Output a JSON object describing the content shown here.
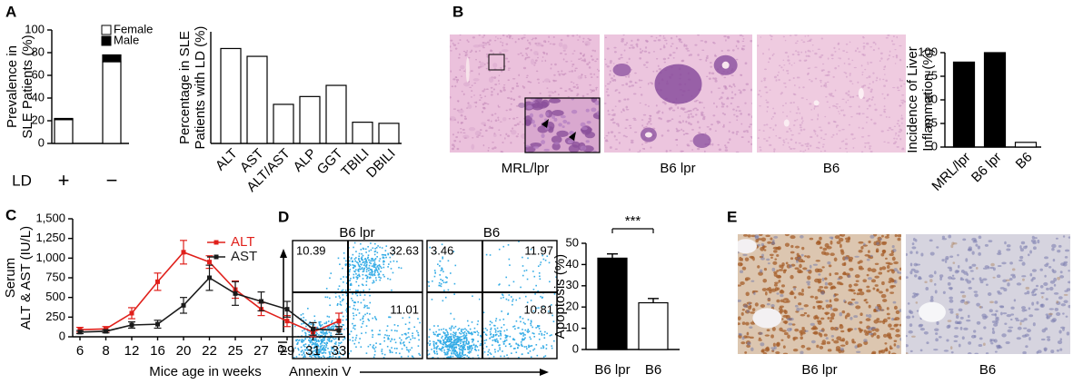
{
  "panel_letters": [
    "A",
    "B",
    "C",
    "D",
    "E"
  ],
  "panel_b_images": [
    "MRL/lpr",
    "B6 lpr",
    "B6"
  ],
  "panel_e_images": [
    "B6 lpr",
    "B6"
  ],
  "flow_cytometry": {
    "ylabel": "PI",
    "xlabel": "Annexin V",
    "plots": [
      {
        "title": "B6 lpr",
        "quadrants": [
          10.39,
          32.63,
          11.01
        ]
      },
      {
        "title": "B6",
        "quadrants": [
          3.46,
          11.97,
          10.81
        ]
      }
    ]
  },
  "chart_data": [
    {
      "type": "bar",
      "ylabel": [
        "Prevalence in",
        "SLE Patients (%)"
      ],
      "xlabel": "LD",
      "categories": [
        "+",
        "−"
      ],
      "series": [
        {
          "name": "Female",
          "color": "#ffffff",
          "values": [
            21,
            72
          ]
        },
        {
          "name": "Male",
          "color": "#000000",
          "values": [
            1,
            6
          ]
        }
      ],
      "ylim": [
        0,
        100
      ],
      "yticks": [
        0,
        20,
        40,
        60,
        80,
        100
      ]
    },
    {
      "type": "bar",
      "ylabel": [
        "Percentage in SLE",
        "Patients  with LD (%)"
      ],
      "categories": [
        "ALT",
        "AST",
        "ALT/AST",
        "ALP",
        "GGT",
        "TBILI",
        "DBILI"
      ],
      "values": [
        85,
        78,
        35,
        42,
        52,
        19,
        18
      ],
      "colors": [
        "#ffffff",
        "#ffffff",
        "#ffffff",
        "#ffffff",
        "#ffffff",
        "#ffffff",
        "#ffffff"
      ],
      "ylim": [
        0,
        100
      ]
    },
    {
      "type": "bar",
      "ylabel": [
        "Incidence of Liver",
        "Inflammation (%)"
      ],
      "categories": [
        "MRL/lpr",
        "B6 lpr",
        "B6"
      ],
      "values": [
        90,
        100,
        5
      ],
      "colors": [
        "#000000",
        "#000000",
        "#ffffff"
      ],
      "ylim": [
        0,
        100
      ],
      "yticks": [
        0,
        25,
        50,
        75,
        100
      ]
    },
    {
      "type": "line",
      "ylabel": [
        "Serum",
        "ALT & AST (IU/L)"
      ],
      "xlabel": "Mice age in weeks",
      "categories": [
        "6",
        "8",
        "12",
        "16",
        "20",
        "22",
        "25",
        "27",
        "29",
        "31",
        "33"
      ],
      "series": [
        {
          "name": "ALT",
          "color": "#e0201b",
          "values": [
            90,
            100,
            300,
            700,
            1075,
            950,
            600,
            350,
            200,
            60,
            200
          ],
          "errors": [
            30,
            30,
            70,
            110,
            150,
            80,
            110,
            80,
            70,
            60,
            100
          ]
        },
        {
          "name": "AST",
          "color": "#1a1a1a",
          "values": [
            60,
            70,
            150,
            160,
            400,
            750,
            550,
            450,
            350,
            100,
            80
          ],
          "errors": [
            20,
            20,
            40,
            50,
            100,
            160,
            150,
            120,
            100,
            80,
            50
          ]
        }
      ],
      "ylim": [
        0,
        1500
      ],
      "yticks": [
        0,
        250,
        500,
        750,
        {
          "value": 1000,
          "label": "1,000"
        },
        {
          "value": 1250,
          "label": "1,250"
        },
        {
          "value": 1500,
          "label": "1,500"
        }
      ]
    },
    {
      "type": "bar",
      "ylabel": "Apoptosis (%)",
      "annotation": "***",
      "categories": [
        "B6 lpr",
        "B6"
      ],
      "values": [
        43,
        22
      ],
      "errors": [
        2,
        2
      ],
      "colors": [
        "#000000",
        "#ffffff"
      ],
      "ylim": [
        0,
        50
      ],
      "yticks": [
        0,
        10,
        20,
        30,
        40,
        50
      ]
    }
  ]
}
